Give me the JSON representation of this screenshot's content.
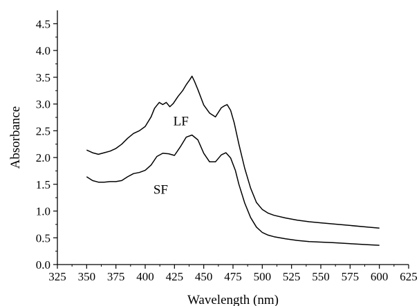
{
  "chart_data": {
    "type": "line",
    "title": "",
    "xlabel": "Wavelength (nm)",
    "ylabel": "Absorbance",
    "xlim": [
      325,
      625
    ],
    "ylim": [
      0.0,
      4.75
    ],
    "xticks": [
      "325",
      "350",
      "375",
      "400",
      "425",
      "450",
      "475",
      "500",
      "525",
      "550",
      "575",
      "600",
      "625"
    ],
    "yticks": [
      "0.0",
      "0.5",
      "1.0",
      "1.5",
      "2.0",
      "2.5",
      "3.0",
      "3.5",
      "4.0",
      "4.5"
    ],
    "grid": false,
    "legend": "none",
    "line_color": "#000000",
    "series": [
      {
        "name": "LF",
        "x": [
          350,
          355,
          360,
          365,
          370,
          375,
          380,
          385,
          390,
          395,
          400,
          405,
          408,
          412,
          415,
          418,
          421,
          424,
          428,
          432,
          435,
          438,
          440,
          442,
          445,
          450,
          455,
          460,
          465,
          468,
          470,
          473,
          476,
          480,
          485,
          490,
          495,
          500,
          505,
          510,
          520,
          530,
          540,
          550,
          560,
          575,
          590,
          600
        ],
        "y": [
          2.14,
          2.09,
          2.06,
          2.09,
          2.12,
          2.17,
          2.25,
          2.36,
          2.45,
          2.5,
          2.58,
          2.76,
          2.92,
          3.03,
          2.99,
          3.03,
          2.95,
          3.01,
          3.14,
          3.25,
          3.36,
          3.45,
          3.52,
          3.43,
          3.27,
          2.98,
          2.83,
          2.76,
          2.93,
          2.97,
          2.99,
          2.88,
          2.65,
          2.25,
          1.8,
          1.43,
          1.16,
          1.03,
          0.96,
          0.92,
          0.87,
          0.83,
          0.8,
          0.78,
          0.76,
          0.73,
          0.7,
          0.68
        ]
      },
      {
        "name": "SF",
        "x": [
          350,
          355,
          360,
          365,
          370,
          375,
          380,
          385,
          390,
          395,
          400,
          405,
          410,
          415,
          420,
          425,
          430,
          435,
          440,
          445,
          450,
          455,
          460,
          465,
          469,
          473,
          477,
          480,
          485,
          490,
          495,
          500,
          505,
          510,
          520,
          530,
          540,
          550,
          560,
          575,
          590,
          600
        ],
        "y": [
          1.64,
          1.57,
          1.54,
          1.54,
          1.55,
          1.55,
          1.57,
          1.64,
          1.7,
          1.72,
          1.76,
          1.86,
          2.02,
          2.08,
          2.07,
          2.04,
          2.2,
          2.38,
          2.42,
          2.33,
          2.08,
          1.92,
          1.92,
          2.05,
          2.09,
          1.99,
          1.76,
          1.5,
          1.15,
          0.88,
          0.7,
          0.6,
          0.55,
          0.52,
          0.48,
          0.45,
          0.43,
          0.42,
          0.41,
          0.39,
          0.37,
          0.36
        ]
      }
    ]
  }
}
